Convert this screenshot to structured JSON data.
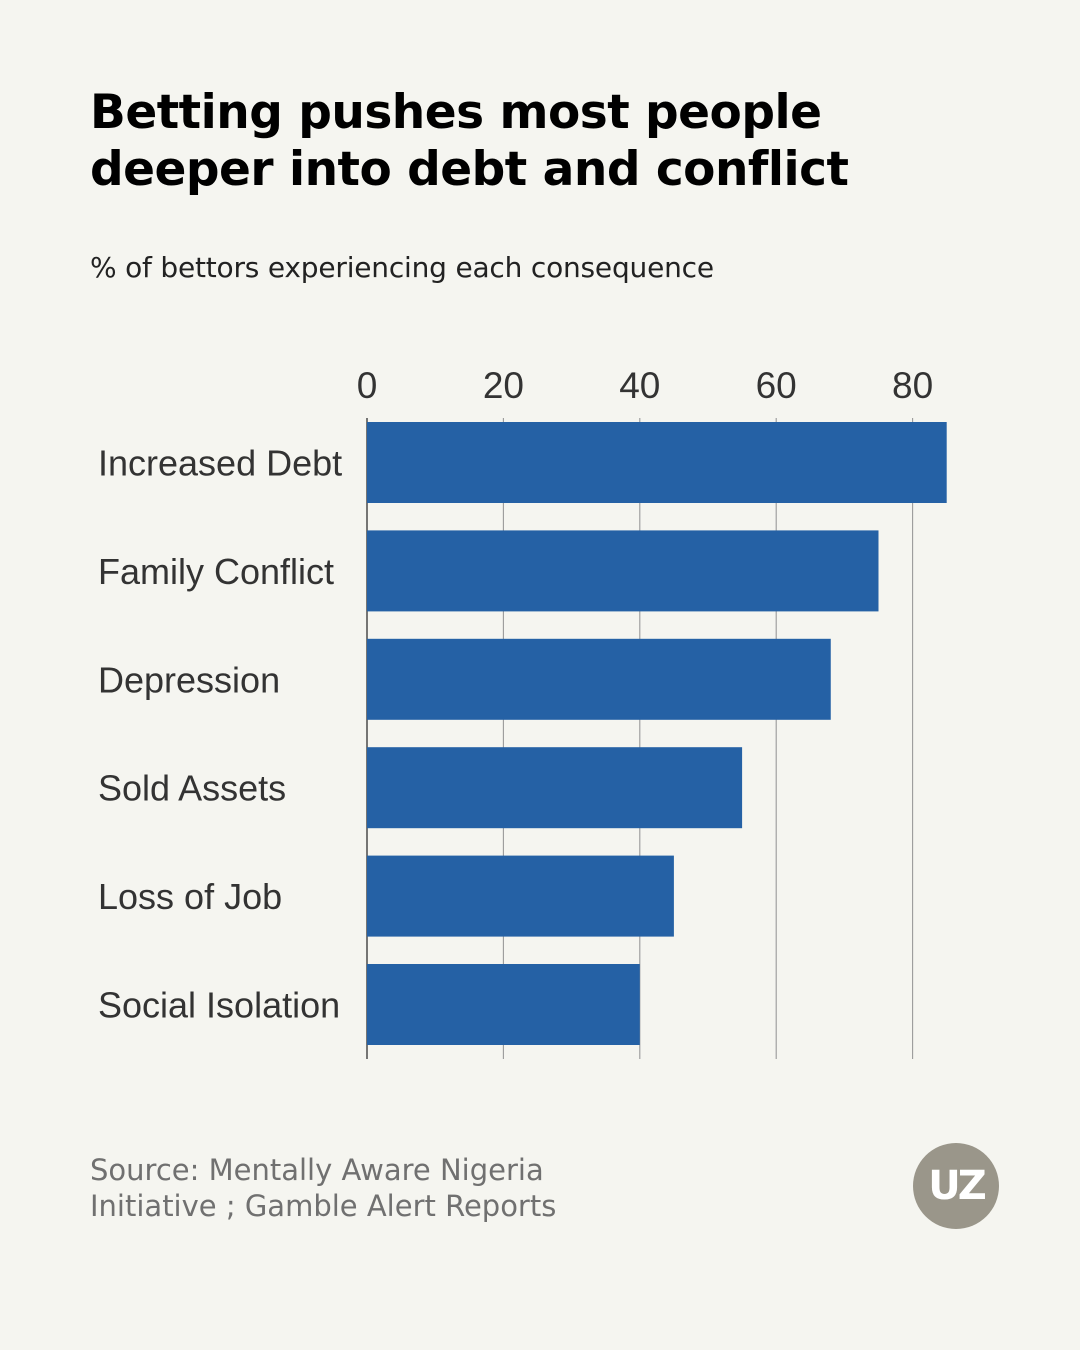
{
  "title_lines": [
    "Betting pushes most people",
    "deeper into debt and conflict"
  ],
  "subtitle": "% of bettors experiencing each consequence",
  "source_lines": [
    "Source: Mentally Aware Nigeria",
    "Initiative ; Gamble Alert Reports"
  ],
  "logo_text": "UZ",
  "colors": {
    "bar": "#2561a5",
    "background": "#f5f5f0",
    "grid": "#999999",
    "logo": "#9a968a"
  },
  "chart_data": {
    "type": "bar",
    "orientation": "horizontal",
    "title": "Betting pushes most people deeper into debt and conflict",
    "subtitle": "% of bettors experiencing each consequence",
    "xlabel": "",
    "ylabel": "",
    "xlim": [
      0,
      85
    ],
    "xticks": [
      0,
      20,
      40,
      60,
      80
    ],
    "xtick_labels": [
      "0",
      "20",
      "40",
      "60",
      "80"
    ],
    "grid": true,
    "legend": "none",
    "categories": [
      "Increased Debt",
      "Family Conflict",
      "Depression",
      "Sold Assets",
      "Loss of Job",
      "Social Isolation"
    ],
    "values": [
      85,
      75,
      68,
      55,
      45,
      40
    ]
  }
}
